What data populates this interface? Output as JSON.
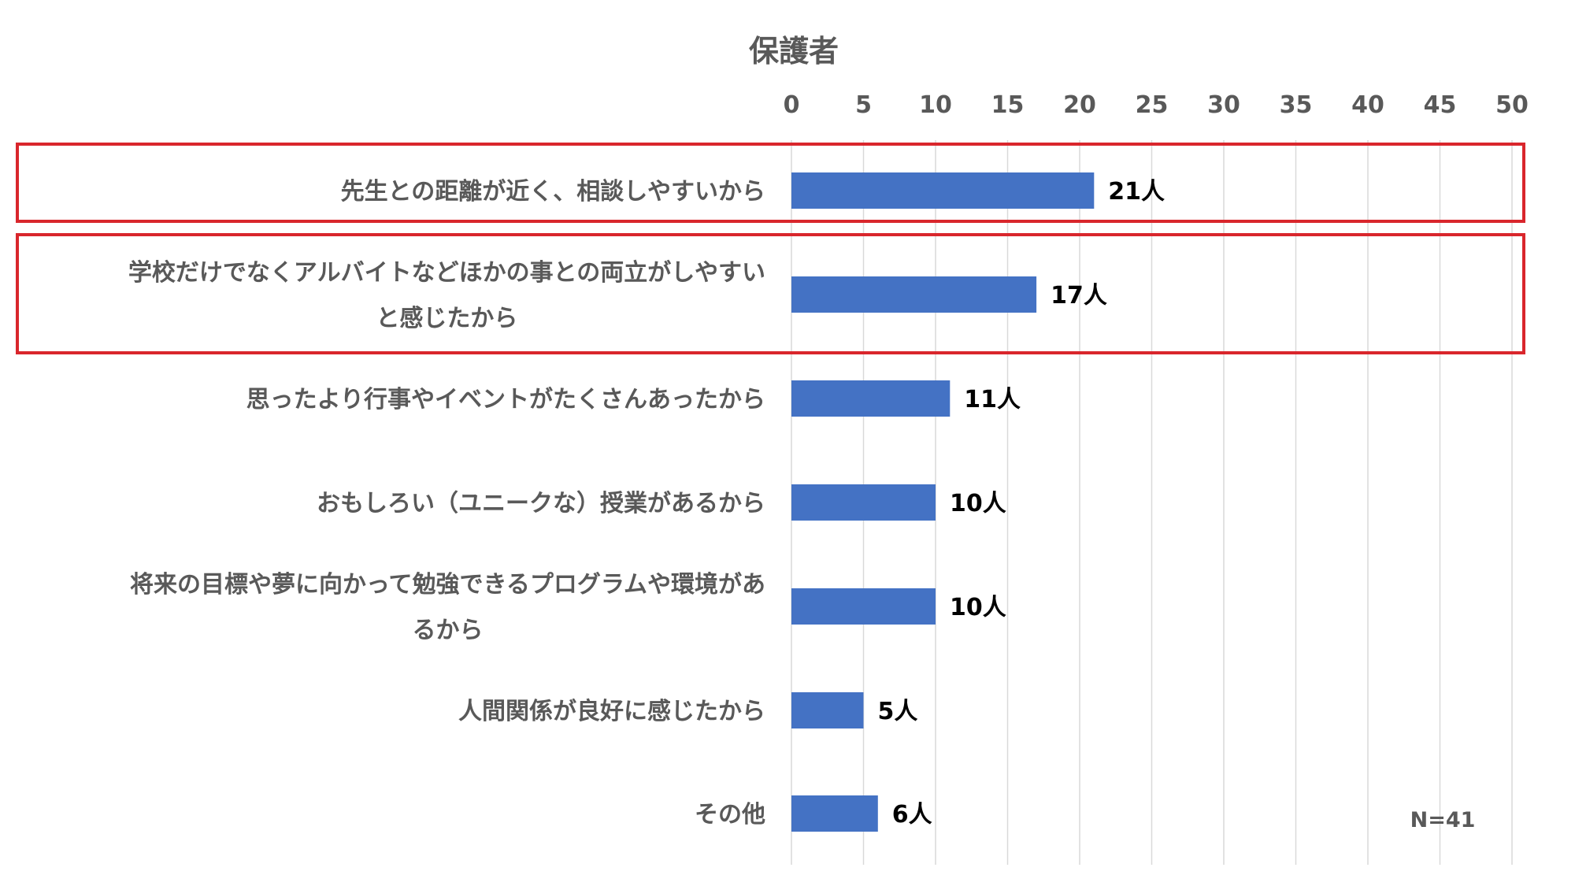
{
  "chart_data": {
    "type": "bar",
    "orientation": "horizontal",
    "title": "保護者",
    "categories": [
      "先生との距離が近く、相談しやすいから",
      "学校だけでなくアルバイトなどほかの事との両立がしやすいと感じたから",
      "思ったより行事やイベントがたくさんあったから",
      "おもしろい（ユニークな）授業があるから",
      "将来の目標や夢に向かって勉強できるプログラムや環境があるから",
      "人間関係が良好に感じたから",
      "その他"
    ],
    "category_lines": [
      [
        "先生との距離が近く、相談しやすいから"
      ],
      [
        "学校だけでなくアルバイトなどほかの事との両立がしやすい",
        "と感じたから"
      ],
      [
        "思ったより行事やイベントがたくさんあったから"
      ],
      [
        "おもしろい（ユニークな）授業があるから"
      ],
      [
        "将来の目標や夢に向かって勉強できるプログラムや環境があ",
        "るから"
      ],
      [
        "人間関係が良好に感じたから"
      ],
      [
        "その他"
      ]
    ],
    "values": [
      21,
      17,
      11,
      10,
      10,
      5,
      6
    ],
    "value_labels": [
      "21人",
      "17人",
      "11人",
      "10人",
      "10人",
      "5人",
      "6人"
    ],
    "xlim": [
      0,
      50
    ],
    "xticks": [
      0,
      5,
      10,
      15,
      20,
      25,
      30,
      35,
      40,
      45,
      50
    ],
    "xtick_labels": [
      "0",
      "5",
      "10",
      "15",
      "20",
      "25",
      "30",
      "35",
      "40",
      "45",
      "50"
    ],
    "axis_position": "top",
    "grid": true,
    "highlighted_categories": [
      0,
      1
    ],
    "annotation": "N=41",
    "xlabel": "",
    "ylabel": ""
  },
  "colors": {
    "bar": "#4472c4",
    "grid": "#d9d9d9",
    "highlight": "#d9262c",
    "text": "#595959",
    "value_text": "#000000"
  }
}
